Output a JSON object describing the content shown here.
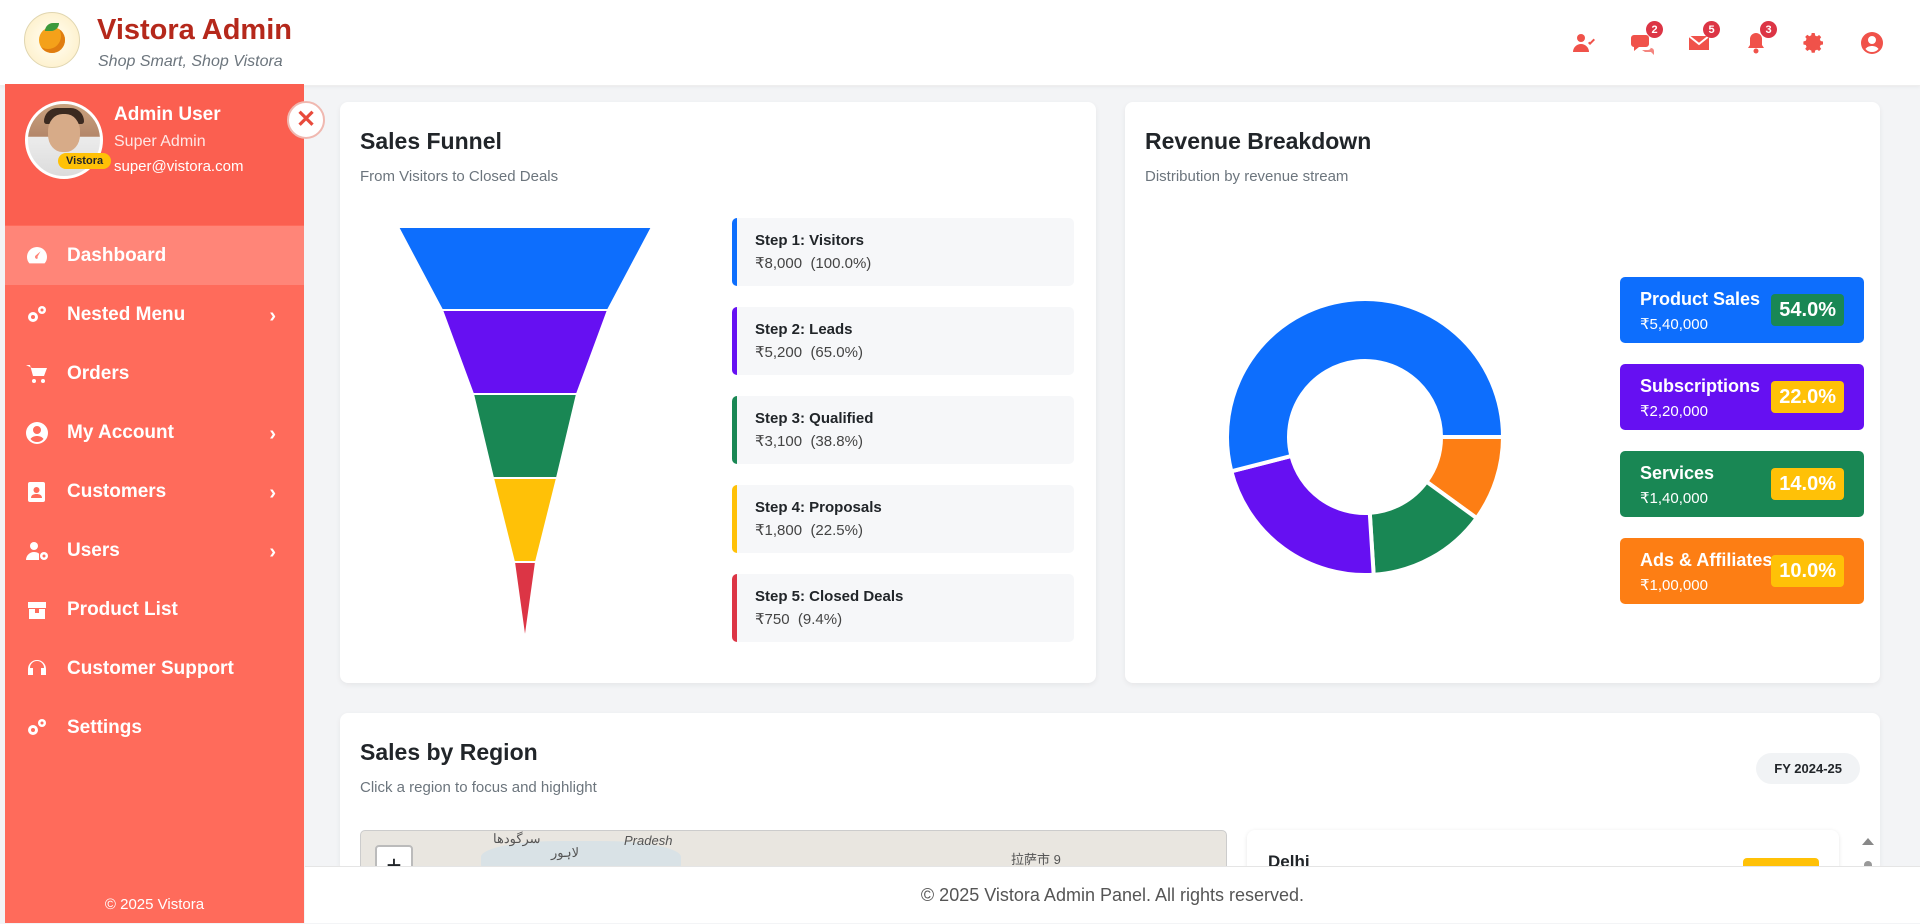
{
  "header": {
    "brand": "Vistora Admin",
    "tagline": "Shop Smart, Shop Vistora",
    "icons": [
      {
        "name": "user-check-icon",
        "badge": ""
      },
      {
        "name": "chat-icon",
        "badge": "2"
      },
      {
        "name": "mail-icon",
        "badge": "5"
      },
      {
        "name": "bell-icon",
        "badge": "3"
      },
      {
        "name": "gear-icon",
        "badge": ""
      },
      {
        "name": "user-circle-icon",
        "badge": ""
      }
    ]
  },
  "sidebar": {
    "user_name": "Admin User",
    "user_role": "Super Admin",
    "user_email": "super@vistora.com",
    "avatar_badge": "Vistora",
    "items": [
      {
        "label": "Dashboard",
        "icon": "speedometer-icon",
        "chevron": false
      },
      {
        "label": "Nested Menu",
        "icon": "gears-icon",
        "chevron": true
      },
      {
        "label": "Orders",
        "icon": "cart-icon",
        "chevron": false
      },
      {
        "label": "My Account",
        "icon": "user-circle-icon",
        "chevron": true
      },
      {
        "label": "Customers",
        "icon": "address-book-icon",
        "chevron": true
      },
      {
        "label": "Users",
        "icon": "user-gear-icon",
        "chevron": true
      },
      {
        "label": "Product List",
        "icon": "box-icon",
        "chevron": false
      },
      {
        "label": "Customer Support",
        "icon": "headset-icon",
        "chevron": false
      },
      {
        "label": "Settings",
        "icon": "gears-icon",
        "chevron": false
      }
    ],
    "footer": "© 2025 Vistora"
  },
  "funnel": {
    "title": "Sales Funnel",
    "subtitle": "From Visitors to Closed Deals",
    "steps": [
      {
        "label": "Step 1: Visitors",
        "value": "₹8,000",
        "pct": "(100.0%)",
        "color": "#0d6efd"
      },
      {
        "label": "Step 2: Leads",
        "value": "₹5,200",
        "pct": "(65.0%)",
        "color": "#6610f2"
      },
      {
        "label": "Step 3: Qualified",
        "value": "₹3,100",
        "pct": "(38.8%)",
        "color": "#198754"
      },
      {
        "label": "Step 4: Proposals",
        "value": "₹1,800",
        "pct": "(22.5%)",
        "color": "#ffc107"
      },
      {
        "label": "Step 5: Closed Deals",
        "value": "₹750",
        "pct": "(9.4%)",
        "color": "#dc3545"
      }
    ]
  },
  "revenue": {
    "title": "Revenue Breakdown",
    "subtitle": "Distribution by revenue stream",
    "streams": [
      {
        "name": "Product Sales",
        "value": "₹5,40,000",
        "pct": "54.0%",
        "share": 54,
        "color": "#0d6efd",
        "pct_bg": "#198754",
        "pct_fg": "#ffffff"
      },
      {
        "name": "Subscriptions",
        "value": "₹2,20,000",
        "pct": "22.0%",
        "share": 22,
        "color": "#6610f2",
        "pct_bg": "#ffc107",
        "pct_fg": "#ffffff"
      },
      {
        "name": "Services",
        "value": "₹1,40,000",
        "pct": "14.0%",
        "share": 14,
        "color": "#198754",
        "pct_bg": "#ffc107",
        "pct_fg": "#ffffff"
      },
      {
        "name": "Ads & Affiliates",
        "value": "₹1,00,000",
        "pct": "10.0%",
        "share": 10,
        "color": "#fd7e14",
        "pct_bg": "#ffc107",
        "pct_fg": "#ffffff"
      }
    ]
  },
  "region": {
    "title": "Sales by Region",
    "subtitle": "Click a region to focus and highlight",
    "fy": "FY 2024-25",
    "map_labels": [
      "سرگودھا",
      "Pradesh",
      "لاہور",
      "拉萨市 9"
    ],
    "zoom_in": "+",
    "first_region": "Delhi"
  },
  "footer": "© 2025 Vistora Admin Panel. All rights reserved."
}
